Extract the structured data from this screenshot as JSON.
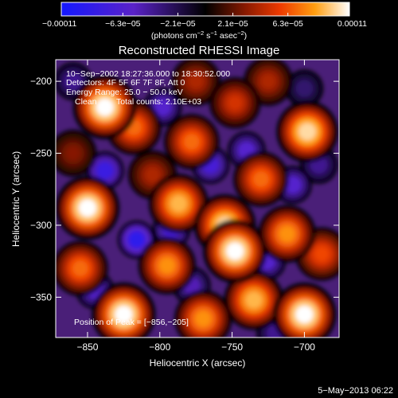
{
  "chart_data": {
    "type": "heatmap",
    "title": "Reconstructed RHESSI Image",
    "xlabel": "Heliocentric X (arcsec)",
    "ylabel": "Heliocentric Y (arcsec)",
    "xlim": [
      -872,
      -676
    ],
    "ylim": [
      -378,
      -185
    ],
    "x_ticks": [
      -850,
      -800,
      -750,
      -700
    ],
    "y_ticks": [
      -200,
      -250,
      -300,
      -350
    ],
    "x_tick_labels": [
      "−850",
      "−800",
      "−750",
      "−700"
    ],
    "y_tick_labels": [
      "−200",
      "−250",
      "−300",
      "−350"
    ],
    "colorbar": {
      "min": -0.00011,
      "max": 0.00011,
      "ticks": [
        -0.00011,
        -6.3e-05,
        -2.1e-05,
        2.1e-05,
        6.3e-05,
        0.00011
      ],
      "tick_labels": [
        "−0.00011",
        "−6.3e−05",
        "−2.1e−05",
        "2.1e−05",
        "6.3e−05",
        "0.00011"
      ],
      "units": {
        "open": "(photons cm",
        "exp1": "−2",
        "s": " s",
        "exp2": "−1",
        "asec": " asec",
        "exp3": "−2",
        "close": ")"
      }
    },
    "sources": [
      {
        "x": -838,
        "y": -218,
        "value": 0.00011
      },
      {
        "x": -850,
        "y": -288,
        "value": 0.00011
      },
      {
        "x": -787,
        "y": -285,
        "value": 9e-05
      },
      {
        "x": -755,
        "y": -300,
        "value": 0.0001
      },
      {
        "x": -748,
        "y": -318,
        "value": 0.00011
      },
      {
        "x": -698,
        "y": -235,
        "value": 0.0001
      },
      {
        "x": -818,
        "y": -232,
        "value": 7e-05
      },
      {
        "x": -778,
        "y": -242,
        "value": 7e-05
      },
      {
        "x": -712,
        "y": -306,
        "value": 8e-05
      },
      {
        "x": -730,
        "y": -268,
        "value": 7e-05
      },
      {
        "x": -748,
        "y": -215,
        "value": 5e-05
      },
      {
        "x": -795,
        "y": -328,
        "value": 8e-05
      },
      {
        "x": -770,
        "y": -365,
        "value": 8e-05
      },
      {
        "x": -735,
        "y": -352,
        "value": 9e-05
      },
      {
        "x": -700,
        "y": -362,
        "value": 0.00011
      },
      {
        "x": -688,
        "y": -320,
        "value": 6e-05
      },
      {
        "x": -825,
        "y": -362,
        "value": 0.00011
      },
      {
        "x": -855,
        "y": -330,
        "value": 7e-05
      },
      {
        "x": -805,
        "y": -265,
        "value": 4e-05
      },
      {
        "x": -725,
        "y": -200,
        "value": 4e-05
      },
      {
        "x": -775,
        "y": -200,
        "value": 4e-05
      },
      {
        "x": -860,
        "y": -250,
        "value": 3e-05
      },
      {
        "x": -792,
        "y": -303,
        "value": -7e-05
      },
      {
        "x": -816,
        "y": -310,
        "value": -9e-05
      },
      {
        "x": -838,
        "y": -262,
        "value": -8e-05
      },
      {
        "x": -765,
        "y": -258,
        "value": -7e-05
      },
      {
        "x": -740,
        "y": -248,
        "value": -6e-05
      },
      {
        "x": -798,
        "y": -218,
        "value": -6e-05
      },
      {
        "x": -726,
        "y": -325,
        "value": -6e-05
      },
      {
        "x": -845,
        "y": -345,
        "value": -6e-05
      },
      {
        "x": -778,
        "y": -342,
        "value": -5e-05
      },
      {
        "x": -708,
        "y": -272,
        "value": -6e-05
      },
      {
        "x": -690,
        "y": -258,
        "value": -4e-05
      },
      {
        "x": -860,
        "y": -200,
        "value": -4e-05
      },
      {
        "x": -720,
        "y": -375,
        "value": -4e-05
      },
      {
        "x": -700,
        "y": -205,
        "value": -3e-05
      }
    ],
    "overlay_text": {
      "time": "10−Sep−2002 18:27:36.000 to 18:30:52.000",
      "detectors": "Detectors: 4F 5F 6F 7F 8F, Att 0",
      "energy": "Energy Range: 25.0 − 50.0 keV",
      "clean": "Clean",
      "counts": "Total counts: 2.10E+03",
      "peak": "Position of Peak = [−856,−205]"
    },
    "footer_date": "5−May−2013 06:22"
  }
}
